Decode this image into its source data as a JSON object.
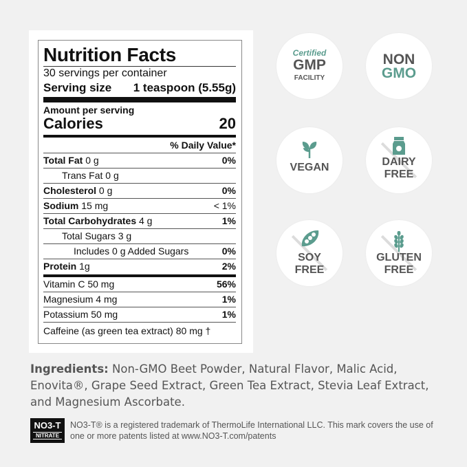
{
  "nutrition": {
    "title": "Nutrition Facts",
    "servings": "30 servings per container",
    "serving_size_label": "Serving size",
    "serving_size_value": "1 teaspoon (5.55g)",
    "amount_per_serving": "Amount per serving",
    "calories_label": "Calories",
    "calories_value": "20",
    "daily_value_header": "% Daily Value*",
    "rows": [
      {
        "label": "Total Fat",
        "amount": "0 g",
        "dv": "0%"
      },
      {
        "label": "Trans Fat",
        "amount": "0 g",
        "dv": ""
      },
      {
        "label": "Cholesterol",
        "amount": "0 g",
        "dv": "0%"
      },
      {
        "label": "Sodium",
        "amount": "15 mg",
        "dv": "< 1%"
      },
      {
        "label": "Total Carbohydrates",
        "amount": "4 g",
        "dv": "1%"
      },
      {
        "label": "Total Sugars",
        "amount": "3 g",
        "dv": ""
      },
      {
        "label": "Includes 0 g Added Sugars",
        "amount": "",
        "dv": "0%"
      },
      {
        "label": "Protein",
        "amount": "1g",
        "dv": "2%"
      }
    ],
    "vitamins": [
      {
        "label": "Vitamin C",
        "amount": "50 mg",
        "dv": "56%"
      },
      {
        "label": "Magnesium",
        "amount": "4 mg",
        "dv": "1%"
      },
      {
        "label": "Potassium",
        "amount": "50 mg",
        "dv": "1%"
      }
    ],
    "caffeine": "Caffeine (as green tea extract) 80 mg †"
  },
  "badges": {
    "gmp": {
      "line1": "Certified",
      "line2": "GMP",
      "line3": "FACILITY"
    },
    "nongmo": {
      "line1": "NON",
      "line2": "GMO"
    },
    "vegan": {
      "line1": "VEGAN",
      "icon": "leaf-icon"
    },
    "dairy": {
      "line1": "DAIRY",
      "line2": "FREE",
      "icon": "milk-carton-icon"
    },
    "soy": {
      "line1": "SOY",
      "line2": "FREE",
      "icon": "soybean-pod-icon"
    },
    "gluten": {
      "line1": "GLUTEN",
      "line2": "FREE",
      "icon": "wheat-icon"
    },
    "accent_color": "#5b9c8e"
  },
  "ingredients": {
    "label": "Ingredients:",
    "text": "Non-GMO Beet Powder, Natural Flavor, Malic Acid, Enovita®, Grape Seed Extract, Green Tea Extract, Stevia Leaf Extract, and Magnesium Ascorbate."
  },
  "trademark": {
    "logo_text": "NO3-T",
    "logo_sub": "NITRATE",
    "text": "NO3-T® is a registered trademark of ThermoLife International LLC. This mark covers the use of one or more patents listed at www.NO3-T.com/patents"
  }
}
